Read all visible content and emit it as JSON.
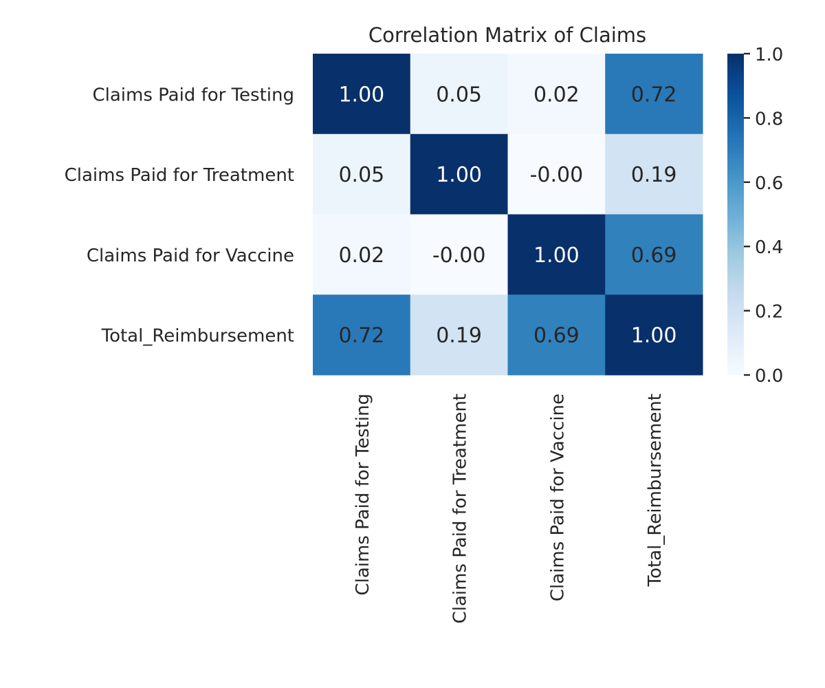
{
  "chart_data": {
    "type": "heatmap",
    "title": "Correlation Matrix of Claims",
    "row_labels": [
      "Claims Paid for Testing",
      "Claims Paid for Treatment",
      "Claims Paid for Vaccine",
      "Total_Reimbursement"
    ],
    "col_labels": [
      "Claims Paid for Testing",
      "Claims Paid for Treatment",
      "Claims Paid for Vaccine",
      "Total_Reimbursement"
    ],
    "values": [
      [
        1.0,
        0.05,
        0.02,
        0.72
      ],
      [
        0.05,
        1.0,
        -0.0,
        0.19
      ],
      [
        0.02,
        -0.0,
        1.0,
        0.69
      ],
      [
        0.72,
        0.19,
        0.69,
        1.0
      ]
    ],
    "annotations": [
      [
        "1.00",
        "0.05",
        "0.02",
        "0.72"
      ],
      [
        "0.05",
        "1.00",
        "-0.00",
        "0.19"
      ],
      [
        "0.02",
        "-0.00",
        "1.00",
        "0.69"
      ],
      [
        "0.72",
        "0.19",
        "0.69",
        "1.00"
      ]
    ],
    "colorbar": {
      "range": [
        0.0,
        1.0
      ],
      "ticks": [
        "0.0",
        "0.2",
        "0.4",
        "0.6",
        "0.8",
        "1.0"
      ],
      "colormap": "Blues"
    },
    "grid": false
  }
}
